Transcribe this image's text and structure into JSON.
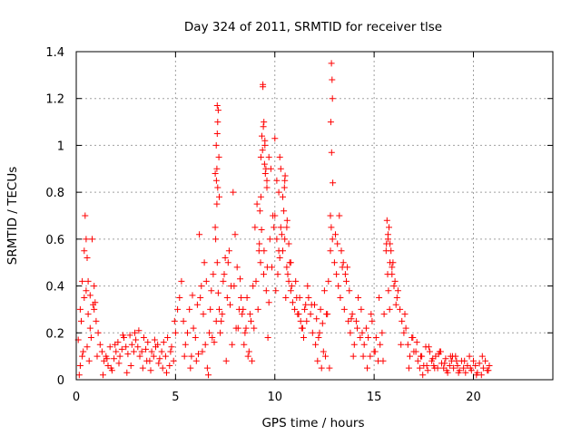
{
  "chart_data": {
    "type": "scatter",
    "title": "Day 324 of 2011, SRMTID for receiver tlse",
    "xlabel": "GPS time / hours",
    "ylabel": "SRMTID / TECUs",
    "xlim": [
      0,
      24
    ],
    "ylim": [
      0,
      1.4
    ],
    "xticks": [
      0,
      5,
      10,
      15,
      20
    ],
    "xtick_labels": [
      "0",
      "5",
      "10",
      "15",
      "20"
    ],
    "yticks": [
      0,
      0.2,
      0.4,
      0.6,
      0.8,
      1.0,
      1.2,
      1.4
    ],
    "ytick_labels": [
      "0",
      "0.2",
      "0.4",
      "0.6",
      "0.8",
      "1",
      "1.2",
      "1.4"
    ],
    "grid": true,
    "marker": "+",
    "color": "#ff0000",
    "series": [
      {
        "name": "SRMTID",
        "x": [
          0.1,
          0.2,
          0.3,
          0.4,
          0.45,
          0.5,
          0.55,
          0.6,
          0.7,
          0.8,
          0.85,
          0.9,
          1.0,
          1.1,
          1.2,
          0.3,
          0.5,
          0.6,
          0.2,
          0.4,
          0.7,
          0.9,
          0.15,
          0.35,
          0.65,
          0.75,
          0.95,
          1.05,
          0.25,
          0.55,
          1.3,
          1.4,
          1.5,
          1.6,
          1.7,
          1.8,
          1.9,
          2.0,
          2.1,
          2.2,
          2.3,
          2.4,
          2.5,
          2.6,
          2.7,
          2.8,
          2.9,
          3.0,
          3.1,
          3.2,
          3.3,
          3.4,
          3.5,
          3.6,
          3.7,
          3.8,
          3.9,
          4.0,
          4.1,
          4.2,
          4.3,
          4.4,
          4.5,
          4.6,
          4.7,
          4.8,
          4.9,
          5.0,
          5.1,
          5.2,
          5.3,
          1.35,
          1.75,
          2.15,
          2.55,
          2.95,
          3.35,
          3.75,
          4.15,
          4.55,
          4.95,
          1.55,
          1.95,
          2.35,
          2.75,
          3.15,
          3.55,
          3.95,
          4.35,
          4.75,
          5.4,
          5.5,
          5.6,
          5.7,
          5.8,
          5.9,
          6.0,
          6.1,
          6.2,
          6.3,
          6.4,
          6.5,
          6.6,
          6.7,
          6.8,
          6.9,
          7.0,
          7.1,
          7.2,
          7.3,
          7.4,
          7.5,
          7.6,
          7.7,
          7.8,
          7.9,
          8.0,
          8.1,
          8.2,
          8.3,
          5.45,
          5.75,
          6.05,
          6.35,
          6.65,
          6.95,
          7.25,
          7.55,
          7.85,
          8.15,
          6.25,
          6.45,
          6.55,
          6.75,
          6.85,
          7.05,
          7.15,
          7.35,
          7.45,
          7.65,
          7.75,
          7.95,
          8.05,
          8.25,
          8.35,
          5.85,
          6.15,
          7.08,
          7.12,
          7.02,
          7.1,
          7.05,
          7.15,
          7.08,
          7.12,
          7.18,
          7.0,
          7.2,
          7.1,
          7.06,
          8.4,
          8.5,
          8.6,
          8.7,
          8.8,
          8.9,
          9.0,
          9.1,
          9.2,
          9.3,
          9.4,
          9.5,
          9.6,
          9.7,
          9.8,
          9.9,
          10.0,
          10.1,
          10.2,
          10.3,
          10.4,
          10.5,
          10.6,
          10.7,
          10.8,
          10.9,
          11.0,
          11.1,
          11.2,
          11.3,
          9.35,
          9.4,
          9.45,
          9.38,
          9.42,
          9.5,
          9.55,
          9.6,
          9.3,
          9.25,
          9.48,
          9.52,
          10.0,
          10.1,
          10.2,
          10.3,
          10.4,
          10.5,
          10.6,
          10.7,
          10.8,
          9.05,
          9.15,
          8.95,
          9.65,
          9.75,
          9.85,
          10.05,
          10.15,
          10.25,
          10.35,
          10.45,
          10.55,
          10.65,
          10.75,
          10.85,
          8.45,
          8.55,
          8.65,
          8.75,
          8.85,
          9.95,
          11.05,
          11.15,
          11.25,
          11.35,
          11.45,
          11.55,
          10.25,
          10.48,
          10.52,
          10.62,
          9.22,
          9.28,
          9.33,
          9.44,
          9.46,
          9.57,
          9.62,
          9.7,
          11.4,
          11.5,
          11.6,
          11.7,
          11.8,
          11.9,
          12.0,
          12.1,
          12.2,
          12.3,
          12.4,
          12.5,
          12.6,
          12.7,
          12.8,
          12.9,
          13.0,
          13.1,
          13.2,
          13.3,
          13.4,
          13.5,
          13.6,
          13.7,
          13.8,
          13.9,
          14.0,
          14.1,
          14.2,
          14.3,
          12.85,
          12.88,
          12.9,
          12.82,
          12.86,
          12.92,
          12.8,
          12.84,
          13.05,
          13.15,
          13.25,
          13.35,
          13.45,
          13.55,
          13.65,
          13.75,
          11.65,
          11.85,
          12.05,
          12.25,
          12.45,
          12.65,
          13.95,
          14.15,
          14.35,
          12.15,
          12.35,
          12.55,
          12.75,
          13.85,
          14.4,
          14.5,
          14.6,
          14.7,
          14.8,
          14.9,
          15.0,
          15.1,
          15.2,
          15.3,
          15.4,
          15.5,
          15.6,
          15.7,
          15.8,
          15.9,
          16.0,
          16.1,
          16.2,
          16.3,
          16.4,
          16.5,
          16.6,
          16.7,
          16.8,
          16.9,
          17.0,
          15.65,
          15.75,
          15.85,
          15.95,
          16.05,
          15.7,
          15.8,
          15.9,
          14.45,
          14.65,
          14.85,
          15.05,
          15.25,
          15.45,
          16.15,
          16.35,
          16.55,
          16.75,
          16.95,
          15.62,
          15.68,
          15.72,
          15.78,
          17.1,
          17.2,
          17.3,
          17.4,
          17.5,
          17.6,
          17.7,
          17.8,
          17.9,
          18.0,
          18.1,
          18.2,
          18.3,
          18.4,
          18.5,
          18.6,
          18.7,
          18.8,
          18.9,
          19.0,
          19.1,
          19.2,
          19.3,
          19.4,
          19.5,
          19.6,
          19.7,
          19.8,
          19.9,
          20.0,
          20.1,
          20.2,
          20.3,
          20.4,
          20.5,
          20.6,
          20.7,
          20.8,
          17.15,
          17.45,
          17.75,
          18.05,
          18.35,
          18.65,
          18.95,
          19.25,
          19.55,
          19.85,
          20.15,
          20.45,
          20.75,
          17.35,
          17.65,
          17.95,
          18.25,
          18.55,
          18.85,
          19.15
        ],
        "y": [
          0.17,
          0.3,
          0.42,
          0.55,
          0.7,
          0.6,
          0.52,
          0.42,
          0.36,
          0.6,
          0.32,
          0.3,
          0.25,
          0.2,
          0.15,
          0.1,
          0.38,
          0.28,
          0.06,
          0.35,
          0.22,
          0.4,
          0.02,
          0.12,
          0.08,
          0.18,
          0.33,
          0.1,
          0.25,
          0.14,
          0.12,
          0.08,
          0.1,
          0.06,
          0.14,
          0.04,
          0.09,
          0.12,
          0.16,
          0.1,
          0.13,
          0.18,
          0.14,
          0.11,
          0.19,
          0.15,
          0.12,
          0.17,
          0.14,
          0.1,
          0.12,
          0.18,
          0.13,
          0.16,
          0.08,
          0.12,
          0.1,
          0.14,
          0.15,
          0.09,
          0.12,
          0.16,
          0.1,
          0.18,
          0.06,
          0.14,
          0.08,
          0.2,
          0.3,
          0.35,
          0.42,
          0.02,
          0.05,
          0.07,
          0.03,
          0.2,
          0.05,
          0.04,
          0.07,
          0.03,
          0.25,
          0.09,
          0.15,
          0.19,
          0.06,
          0.21,
          0.08,
          0.17,
          0.05,
          0.12,
          0.25,
          0.15,
          0.2,
          0.3,
          0.1,
          0.22,
          0.18,
          0.32,
          0.62,
          0.4,
          0.28,
          0.15,
          0.05,
          0.2,
          0.38,
          0.45,
          0.65,
          0.5,
          0.3,
          0.25,
          0.42,
          0.52,
          0.35,
          0.55,
          0.4,
          0.8,
          0.62,
          0.48,
          0.3,
          0.35,
          0.1,
          0.05,
          0.08,
          0.12,
          0.02,
          0.16,
          0.2,
          0.08,
          0.15,
          0.22,
          0.35,
          0.5,
          0.42,
          0.3,
          0.18,
          0.25,
          0.37,
          0.28,
          0.45,
          0.5,
          0.32,
          0.4,
          0.22,
          0.43,
          0.28,
          0.36,
          0.11,
          0.75,
          0.82,
          0.6,
          1.05,
          1.0,
          1.15,
          0.9,
          1.1,
          0.95,
          0.88,
          0.78,
          1.17,
          0.85,
          0.3,
          0.2,
          0.35,
          0.12,
          0.25,
          0.4,
          0.65,
          0.75,
          0.55,
          0.95,
          1.25,
          1.0,
          0.85,
          0.95,
          0.9,
          0.7,
          1.03,
          0.85,
          0.8,
          0.65,
          0.55,
          0.6,
          0.48,
          0.42,
          0.38,
          0.33,
          0.3,
          0.35,
          0.28,
          0.25,
          1.04,
          1.26,
          1.1,
          0.98,
          1.08,
          1.02,
          0.9,
          0.82,
          0.78,
          0.72,
          0.92,
          0.88,
          0.7,
          0.6,
          0.55,
          0.9,
          0.78,
          0.85,
          0.65,
          0.58,
          0.5,
          0.42,
          0.3,
          0.22,
          0.18,
          0.6,
          0.48,
          0.38,
          0.45,
          0.52,
          0.62,
          0.72,
          0.35,
          0.45,
          0.5,
          0.4,
          0.15,
          0.22,
          0.1,
          0.28,
          0.08,
          0.65,
          0.42,
          0.28,
          0.35,
          0.22,
          0.18,
          0.32,
          0.95,
          0.82,
          0.87,
          0.68,
          0.58,
          0.5,
          0.64,
          0.45,
          0.55,
          0.38,
          0.48,
          0.33,
          0.22,
          0.3,
          0.25,
          0.35,
          0.28,
          0.2,
          0.32,
          0.26,
          0.18,
          0.3,
          0.24,
          0.38,
          0.28,
          0.42,
          0.55,
          0.6,
          0.5,
          0.45,
          0.4,
          0.35,
          0.48,
          0.3,
          0.42,
          0.25,
          0.2,
          0.28,
          0.15,
          0.25,
          0.35,
          0.18,
          1.35,
          1.28,
          1.2,
          1.1,
          0.97,
          0.84,
          0.7,
          0.65,
          0.62,
          0.58,
          0.7,
          0.55,
          0.5,
          0.45,
          0.48,
          0.38,
          0.4,
          0.32,
          0.15,
          0.2,
          0.12,
          0.28,
          0.1,
          0.22,
          0.3,
          0.08,
          0.05,
          0.1,
          0.05,
          0.26,
          0.2,
          0.15,
          0.22,
          0.18,
          0.1,
          0.25,
          0.12,
          0.18,
          0.08,
          0.15,
          0.2,
          0.28,
          0.55,
          0.6,
          0.5,
          0.45,
          0.4,
          0.32,
          0.38,
          0.3,
          0.25,
          0.2,
          0.22,
          0.15,
          0.1,
          0.18,
          0.12,
          0.68,
          0.65,
          0.55,
          0.5,
          0.42,
          0.62,
          0.58,
          0.48,
          0.1,
          0.05,
          0.28,
          0.12,
          0.35,
          0.08,
          0.35,
          0.15,
          0.28,
          0.05,
          0.18,
          0.58,
          0.45,
          0.38,
          0.3,
          0.12,
          0.08,
          0.05,
          0.1,
          0.06,
          0.14,
          0.04,
          0.12,
          0.08,
          0.06,
          0.1,
          0.05,
          0.12,
          0.07,
          0.05,
          0.09,
          0.03,
          0.06,
          0.08,
          0.05,
          0.1,
          0.06,
          0.04,
          0.08,
          0.05,
          0.03,
          0.06,
          0.1,
          0.04,
          0.08,
          0.06,
          0.03,
          0.07,
          0.02,
          0.05,
          0.08,
          0.04,
          0.06,
          0.16,
          0.02,
          0.14,
          0.05,
          0.12,
          0.04,
          0.1,
          0.03,
          0.08,
          0.05,
          0.02,
          0.1,
          0.04,
          0.1,
          0.06,
          0.09,
          0.11,
          0.07,
          0.1,
          0.08
        ]
      }
    ]
  }
}
